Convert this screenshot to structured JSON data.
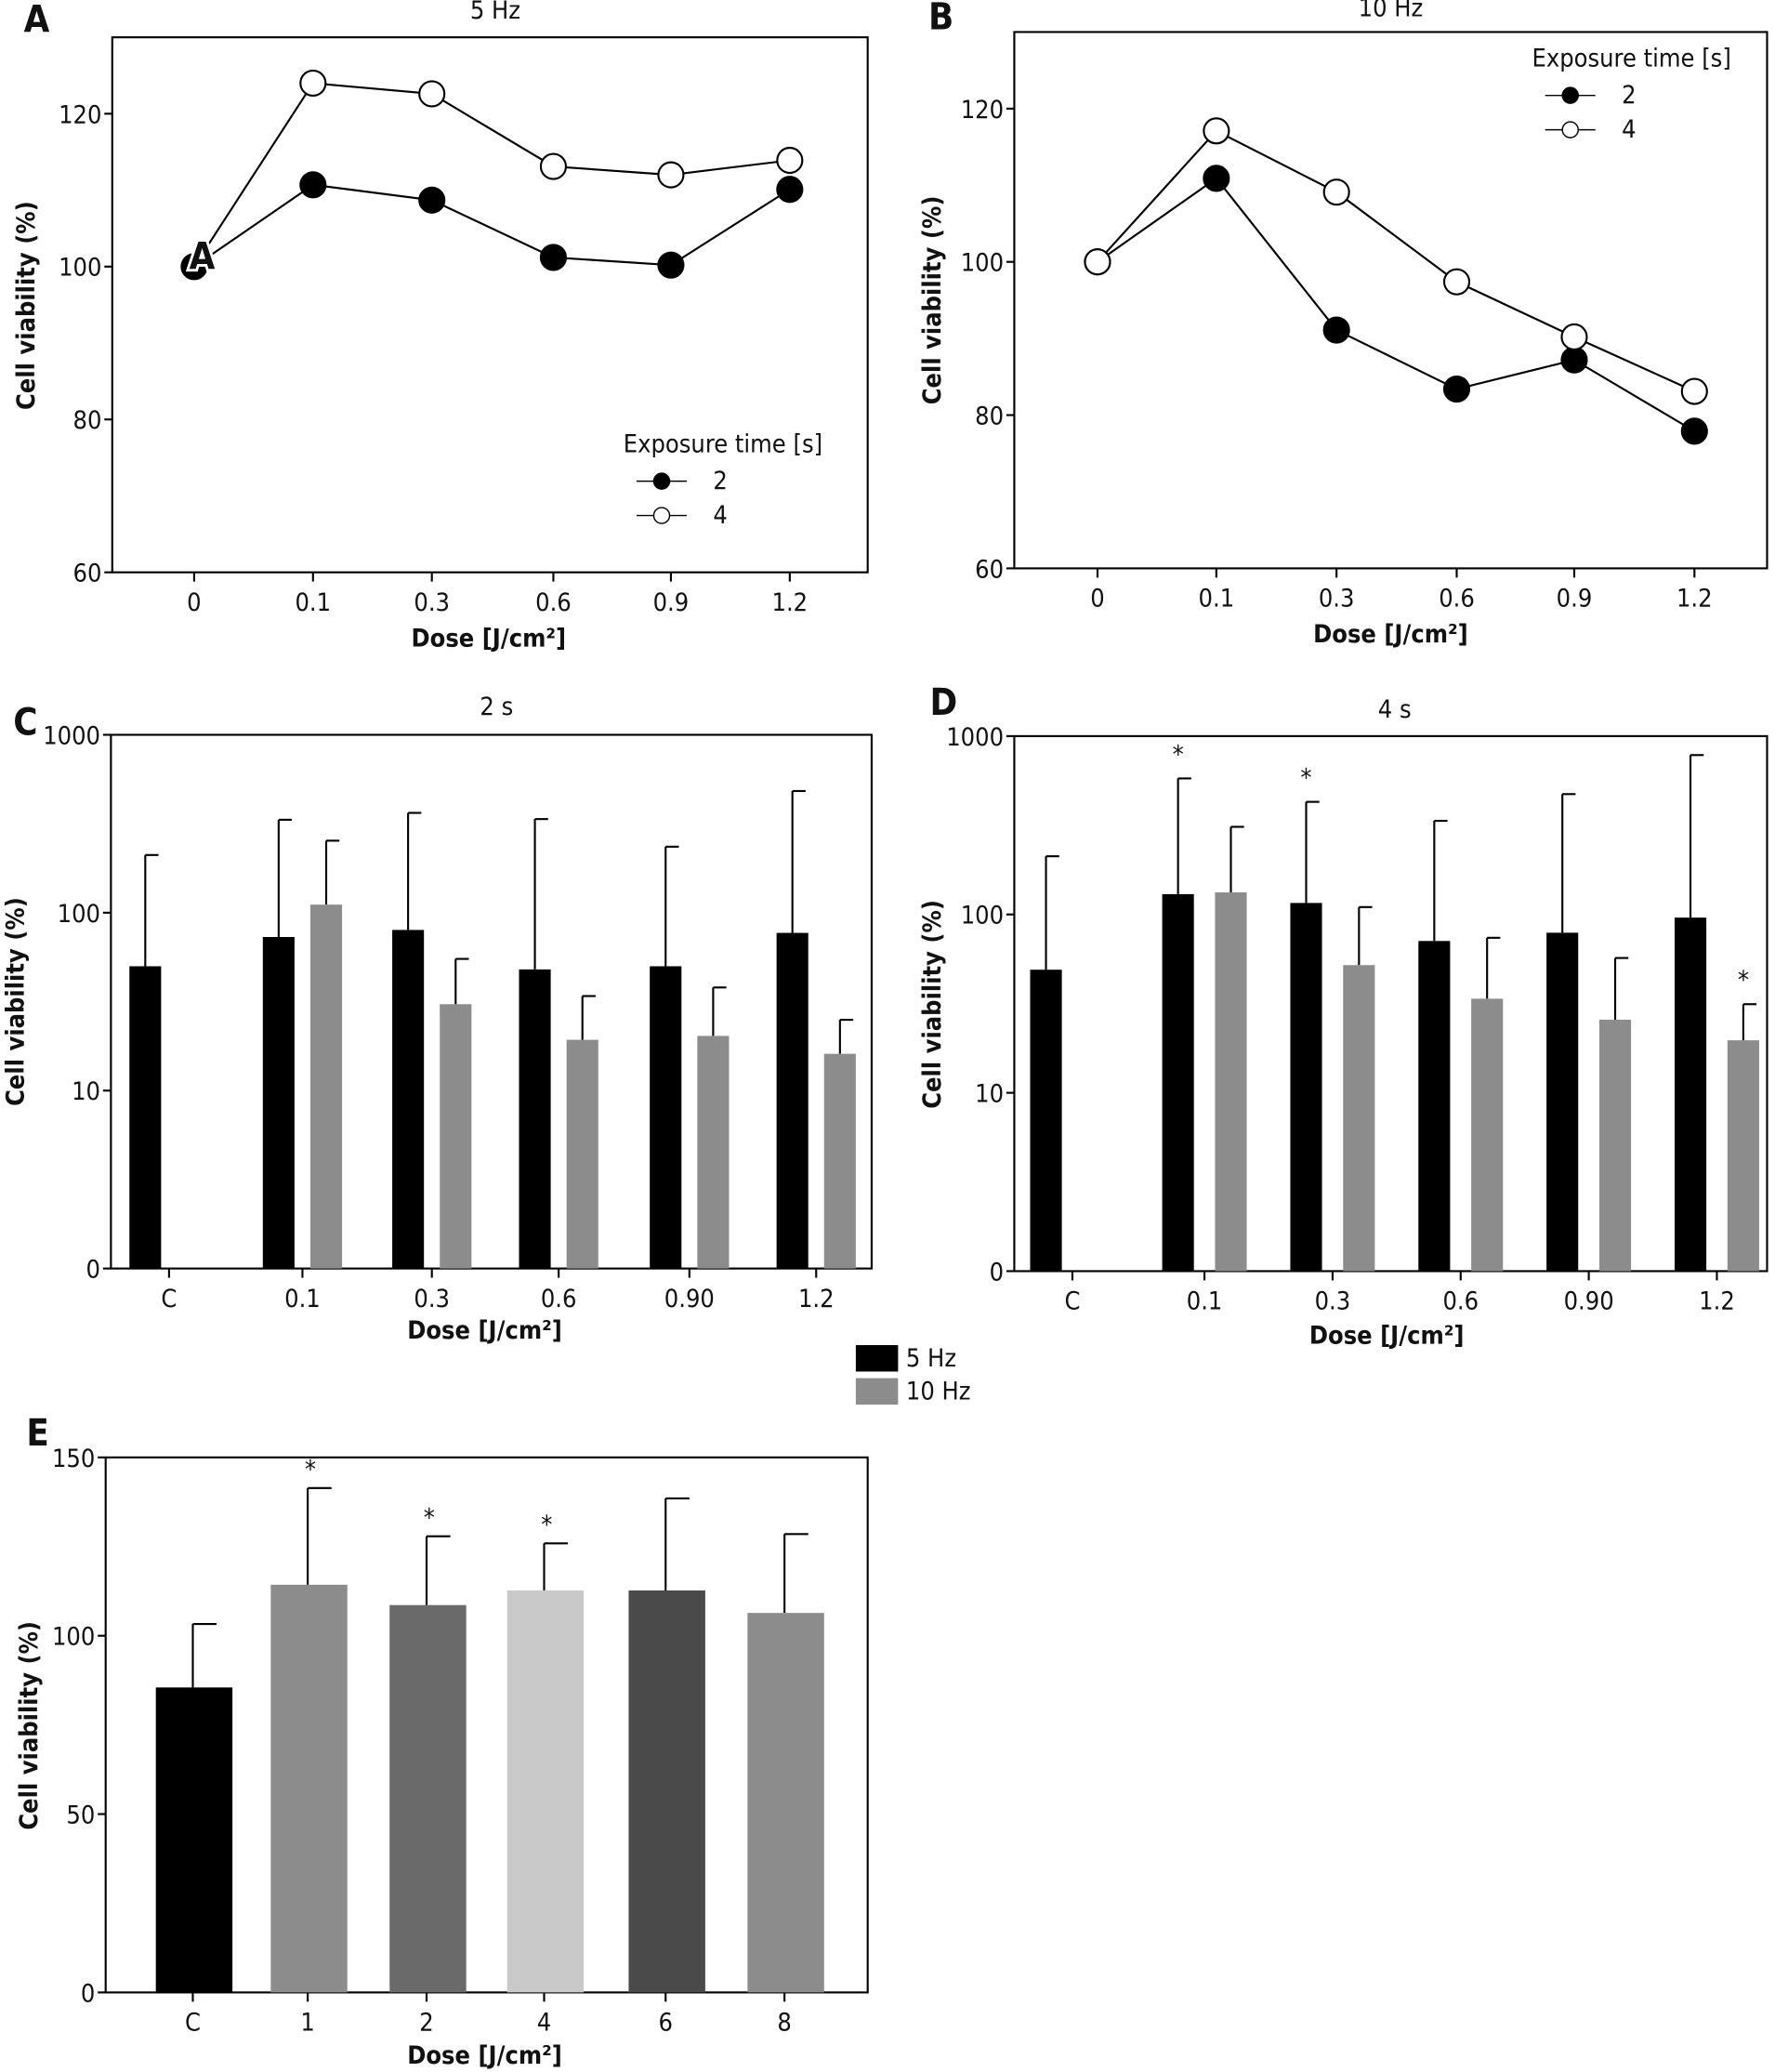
{
  "legend_frequency": {
    "entries": [
      {
        "label": "5 Hz",
        "color": "#000000"
      },
      {
        "label": "10 Hz",
        "color": "#8c8c8c"
      }
    ]
  },
  "chart_data": [
    {
      "panel": "A",
      "type": "line",
      "title": "5 Hz",
      "xlabel": "Dose [J/cm²]",
      "ylabel": "Cell viability (%)",
      "categories": [
        "0",
        "0.1",
        "0.3",
        "0.6",
        "0.9",
        "1.2"
      ],
      "ylim": [
        60,
        130
      ],
      "yticks": [
        60,
        80,
        100,
        120
      ],
      "overlay_label": "A",
      "legend": {
        "title": "Exposure time [s]",
        "placement": "bottom-right"
      },
      "series": [
        {
          "name": "2",
          "marker": "filled",
          "values": [
            100,
            110.7,
            108.7,
            101.2,
            100.2,
            110.1
          ]
        },
        {
          "name": "4",
          "marker": "open",
          "values": [
            100,
            124.0,
            122.6,
            113.1,
            112.0,
            113.9
          ]
        }
      ]
    },
    {
      "panel": "B",
      "type": "line",
      "title": "10 Hz",
      "xlabel": "Dose [J/cm²]",
      "ylabel": "Cell viability (%)",
      "categories": [
        "0",
        "0.1",
        "0.3",
        "0.6",
        "0.9",
        "1.2"
      ],
      "ylim": [
        60,
        130
      ],
      "yticks": [
        60,
        80,
        100,
        120
      ],
      "legend": {
        "title": "Exposure time [s]",
        "placement": "top-right"
      },
      "series": [
        {
          "name": "2",
          "marker": "filled",
          "values": [
            100,
            110.9,
            91.1,
            83.4,
            87.2,
            77.9
          ]
        },
        {
          "name": "4",
          "marker": "open",
          "values": [
            100,
            117.1,
            109.1,
            97.4,
            90.2,
            83.1
          ]
        }
      ]
    },
    {
      "panel": "C",
      "type": "bar",
      "title": "2 s",
      "yscale": "log",
      "xlabel": "Dose [J/cm²]",
      "ylabel": "Cell viability (%)",
      "categories": [
        "C",
        "0.1",
        "0.3",
        "0.6",
        "0.90",
        "1.2"
      ],
      "ylim": [
        1,
        1000
      ],
      "yticks": [
        1,
        10,
        100,
        1000
      ],
      "ytick_labels": [
        "0",
        "10",
        "100",
        "1000"
      ],
      "series": [
        {
          "name": "5 Hz",
          "color": "#000000",
          "values": [
            50,
            73,
            80,
            48,
            50,
            77
          ],
          "error_upper": [
            211,
            333,
            364,
            336,
            235,
            483
          ],
          "significant": [
            false,
            false,
            false,
            false,
            false,
            false
          ]
        },
        {
          "name": "10 Hz",
          "color": "#8c8c8c",
          "values": [
            null,
            111,
            30.6,
            19.3,
            20.3,
            16.1
          ],
          "error_upper": [
            null,
            254,
            55,
            34,
            38,
            25
          ],
          "significant": [
            false,
            false,
            false,
            false,
            false,
            false
          ]
        }
      ]
    },
    {
      "panel": "D",
      "type": "bar",
      "title": "4 s",
      "yscale": "log",
      "xlabel": "Dose [J/cm²]",
      "ylabel": "Cell viability (%)",
      "categories": [
        "C",
        "0.1",
        "0.3",
        "0.6",
        "0.90",
        "1.2"
      ],
      "ylim": [
        1,
        1000
      ],
      "yticks": [
        1,
        10,
        100,
        1000
      ],
      "ytick_labels": [
        "0",
        "10",
        "100",
        "1000"
      ],
      "significance_mark": "*",
      "series": [
        {
          "name": "5 Hz",
          "color": "#000000",
          "values": [
            49,
            130,
            116,
            71,
            79,
            96
          ],
          "error_upper": [
            212,
            579,
            428,
            335,
            473,
            783
          ],
          "significant": [
            false,
            true,
            true,
            false,
            false,
            false
          ]
        },
        {
          "name": "10 Hz",
          "color": "#8c8c8c",
          "values": [
            null,
            133,
            52,
            33.7,
            25.7,
            19.7
          ],
          "error_upper": [
            null,
            310,
            110,
            74,
            57,
            31.4
          ],
          "significant": [
            false,
            false,
            false,
            false,
            false,
            true
          ]
        }
      ]
    },
    {
      "panel": "E",
      "type": "bar",
      "xlabel": "Dose [J/cm²]",
      "ylabel": "Cell viability (%)",
      "categories": [
        "C",
        "1",
        "2",
        "4",
        "6",
        "8"
      ],
      "ylim": [
        0,
        150
      ],
      "yticks": [
        0,
        50,
        100,
        150
      ],
      "significance_mark": "*",
      "values": [
        85.5,
        114.3,
        108.6,
        112.7,
        112.7,
        106.4
      ],
      "error_upper": [
        103.3,
        141.4,
        127.9,
        125.9,
        138.5,
        128.5
      ],
      "significant": [
        false,
        true,
        true,
        true,
        false,
        false
      ],
      "colors": [
        "#000000",
        "#8c8c8c",
        "#6a6a6a",
        "#c9c9c9",
        "#4a4a4a",
        "#8c8c8c"
      ]
    }
  ]
}
